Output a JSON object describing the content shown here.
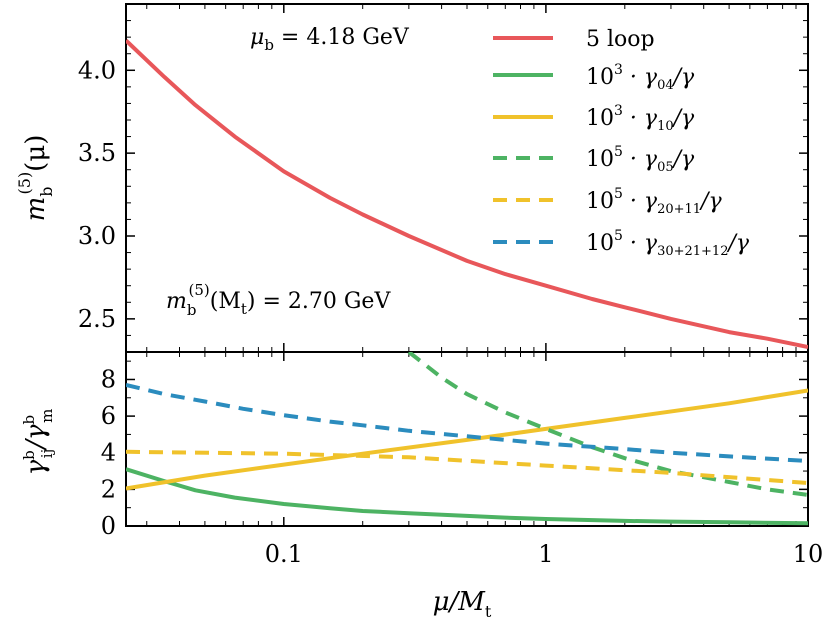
{
  "chart_data": [
    {
      "type": "line",
      "panel": "top",
      "xscale": "log",
      "xlim": [
        0.025,
        10
      ],
      "ylim": [
        2.3,
        4.4
      ],
      "ylabel": "m_b^(5)(μ)",
      "yticks": [
        "2.5",
        "3.0",
        "3.5",
        "4.0"
      ],
      "yticks_values": [
        2.5,
        3.0,
        3.5,
        4.0
      ],
      "annotations": [
        "μ_b = 4.18 GeV",
        "m_b^(5)(M_t) = 2.70 GeV"
      ],
      "grid": false,
      "legend_position": "top-right",
      "series": [
        {
          "name": "5 loop",
          "color": "#e8575a",
          "dash": "solid",
          "x": [
            0.025,
            0.035,
            0.046,
            0.065,
            0.1,
            0.15,
            0.2,
            0.3,
            0.5,
            0.7,
            1.0,
            1.5,
            2.0,
            3.0,
            5.0,
            7.0,
            10.0
          ],
          "y": [
            4.18,
            3.96,
            3.79,
            3.6,
            3.39,
            3.23,
            3.13,
            3.0,
            2.85,
            2.77,
            2.7,
            2.62,
            2.57,
            2.5,
            2.42,
            2.38,
            2.33
          ]
        }
      ]
    },
    {
      "type": "line",
      "panel": "bottom",
      "xscale": "log",
      "xlim": [
        0.025,
        10
      ],
      "ylim": [
        0,
        9.5
      ],
      "xlabel": "μ/M_t",
      "ylabel": "γ_ij^b / γ_m^b",
      "xticks": [
        "0.1",
        "1",
        "10"
      ],
      "xticks_values": [
        0.1,
        1,
        10
      ],
      "yticks": [
        "0",
        "2",
        "4",
        "6",
        "8"
      ],
      "yticks_values": [
        0,
        2,
        4,
        6,
        8
      ],
      "grid": false,
      "series": [
        {
          "name": "10^3 · γ_04/γ",
          "color": "#4db363",
          "dash": "solid",
          "x": [
            0.025,
            0.035,
            0.046,
            0.065,
            0.1,
            0.15,
            0.2,
            0.3,
            0.5,
            0.7,
            1.0,
            2.0,
            3.0,
            5.0,
            10.0
          ],
          "y": [
            3.1,
            2.45,
            1.95,
            1.55,
            1.2,
            0.97,
            0.82,
            0.7,
            0.55,
            0.46,
            0.38,
            0.28,
            0.24,
            0.2,
            0.15
          ]
        },
        {
          "name": "10^3 · γ_10/γ",
          "color": "#f0c22b",
          "dash": "solid",
          "x": [
            0.025,
            0.05,
            0.1,
            0.2,
            0.5,
            1.0,
            2.0,
            5.0,
            10.0
          ],
          "y": [
            2.05,
            2.75,
            3.35,
            3.95,
            4.7,
            5.3,
            5.9,
            6.7,
            7.4
          ]
        },
        {
          "name": "10^5 · γ_05/γ",
          "color": "#4db363",
          "dash": "dashed",
          "x": [
            0.3,
            0.4,
            0.5,
            0.7,
            1.0,
            1.5,
            2.0,
            3.0,
            5.0,
            7.0,
            10.0
          ],
          "y": [
            9.5,
            8.1,
            7.2,
            6.2,
            5.3,
            4.3,
            3.7,
            3.0,
            2.4,
            2.0,
            1.7
          ]
        },
        {
          "name": "10^5 · γ_20+11/γ",
          "color": "#f0c22b",
          "dash": "dashed",
          "x": [
            0.025,
            0.1,
            0.3,
            1.0,
            3.0,
            10.0
          ],
          "y": [
            4.05,
            3.95,
            3.75,
            3.3,
            2.9,
            2.35
          ]
        },
        {
          "name": "10^5 · γ_30+21+12/γ",
          "color": "#2b8cbe",
          "dash": "dashed",
          "x": [
            0.025,
            0.035,
            0.05,
            0.07,
            0.1,
            0.15,
            0.2,
            0.3,
            0.5,
            0.7,
            1.0,
            2.0,
            3.0,
            5.0,
            10.0
          ],
          "y": [
            7.7,
            7.2,
            6.8,
            6.4,
            6.05,
            5.7,
            5.5,
            5.2,
            4.9,
            4.7,
            4.5,
            4.2,
            4.0,
            3.8,
            3.55
          ]
        }
      ]
    }
  ],
  "labels": {
    "top_ylabel": {
      "base": "m",
      "sub": "b",
      "sup": "(5)",
      "tail": "(μ)"
    },
    "bottom_ylabel": {
      "num": "γ",
      "num_sup": "b",
      "num_sub": "ij",
      "den": "γ",
      "den_sup": "b",
      "den_sub": "m"
    },
    "xlabel": {
      "main": "μ/M",
      "sub": "t"
    },
    "annot_mu": {
      "pre": "μ",
      "sub": "b",
      "post": " = 4.18 GeV"
    },
    "annot_m": {
      "base": "m",
      "sub": "b",
      "sup": "(5)",
      "post": "(M",
      "post_sub": "t",
      "tail": ") = 2.70 GeV"
    }
  },
  "legend": [
    {
      "text": "5 loop"
    },
    {
      "pre": "10",
      "sup": "3",
      "mid": " · γ",
      "sub": "04",
      "post": "/γ"
    },
    {
      "pre": "10",
      "sup": "3",
      "mid": " · γ",
      "sub": "10",
      "post": "/γ"
    },
    {
      "pre": "10",
      "sup": "5",
      "mid": " · γ",
      "sub": "05",
      "post": "/γ"
    },
    {
      "pre": "10",
      "sup": "5",
      "mid": " · γ",
      "sub": "20+11",
      "post": "/γ"
    },
    {
      "pre": "10",
      "sup": "5",
      "mid": " · γ",
      "sub": "30+21+12",
      "post": "/γ"
    }
  ]
}
